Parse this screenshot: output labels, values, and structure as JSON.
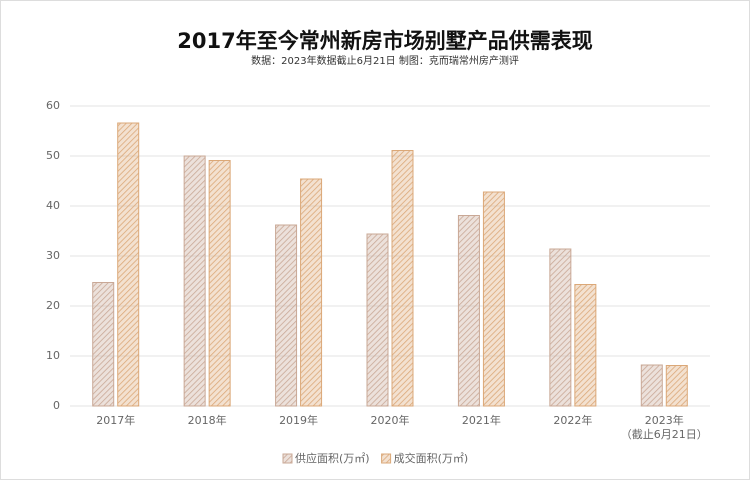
{
  "chart_data": {
    "type": "bar",
    "title": "2017年至今常州新房市场别墅产品供需表现",
    "subtitle": "数据：2023年数据截止6月21日 制图：克而瑞常州房产测评",
    "categories": [
      "2017年",
      "2018年",
      "2019年",
      "2020年",
      "2021年",
      "2022年",
      "2023年\n（截止6月21日）"
    ],
    "series": [
      {
        "name": "供应面积(万㎡)",
        "color": "#c9a896",
        "values": [
          24.7,
          50.0,
          36.2,
          34.4,
          38.1,
          31.4,
          8.2
        ]
      },
      {
        "name": "成交面积(万㎡)",
        "color": "#dba878",
        "values": [
          56.6,
          49.1,
          45.4,
          51.1,
          42.8,
          24.3,
          8.1
        ]
      }
    ],
    "ylim": [
      0,
      60
    ],
    "yticks": [
      0,
      10,
      20,
      30,
      40,
      50,
      60
    ],
    "grid": true,
    "legend": "bottom"
  }
}
